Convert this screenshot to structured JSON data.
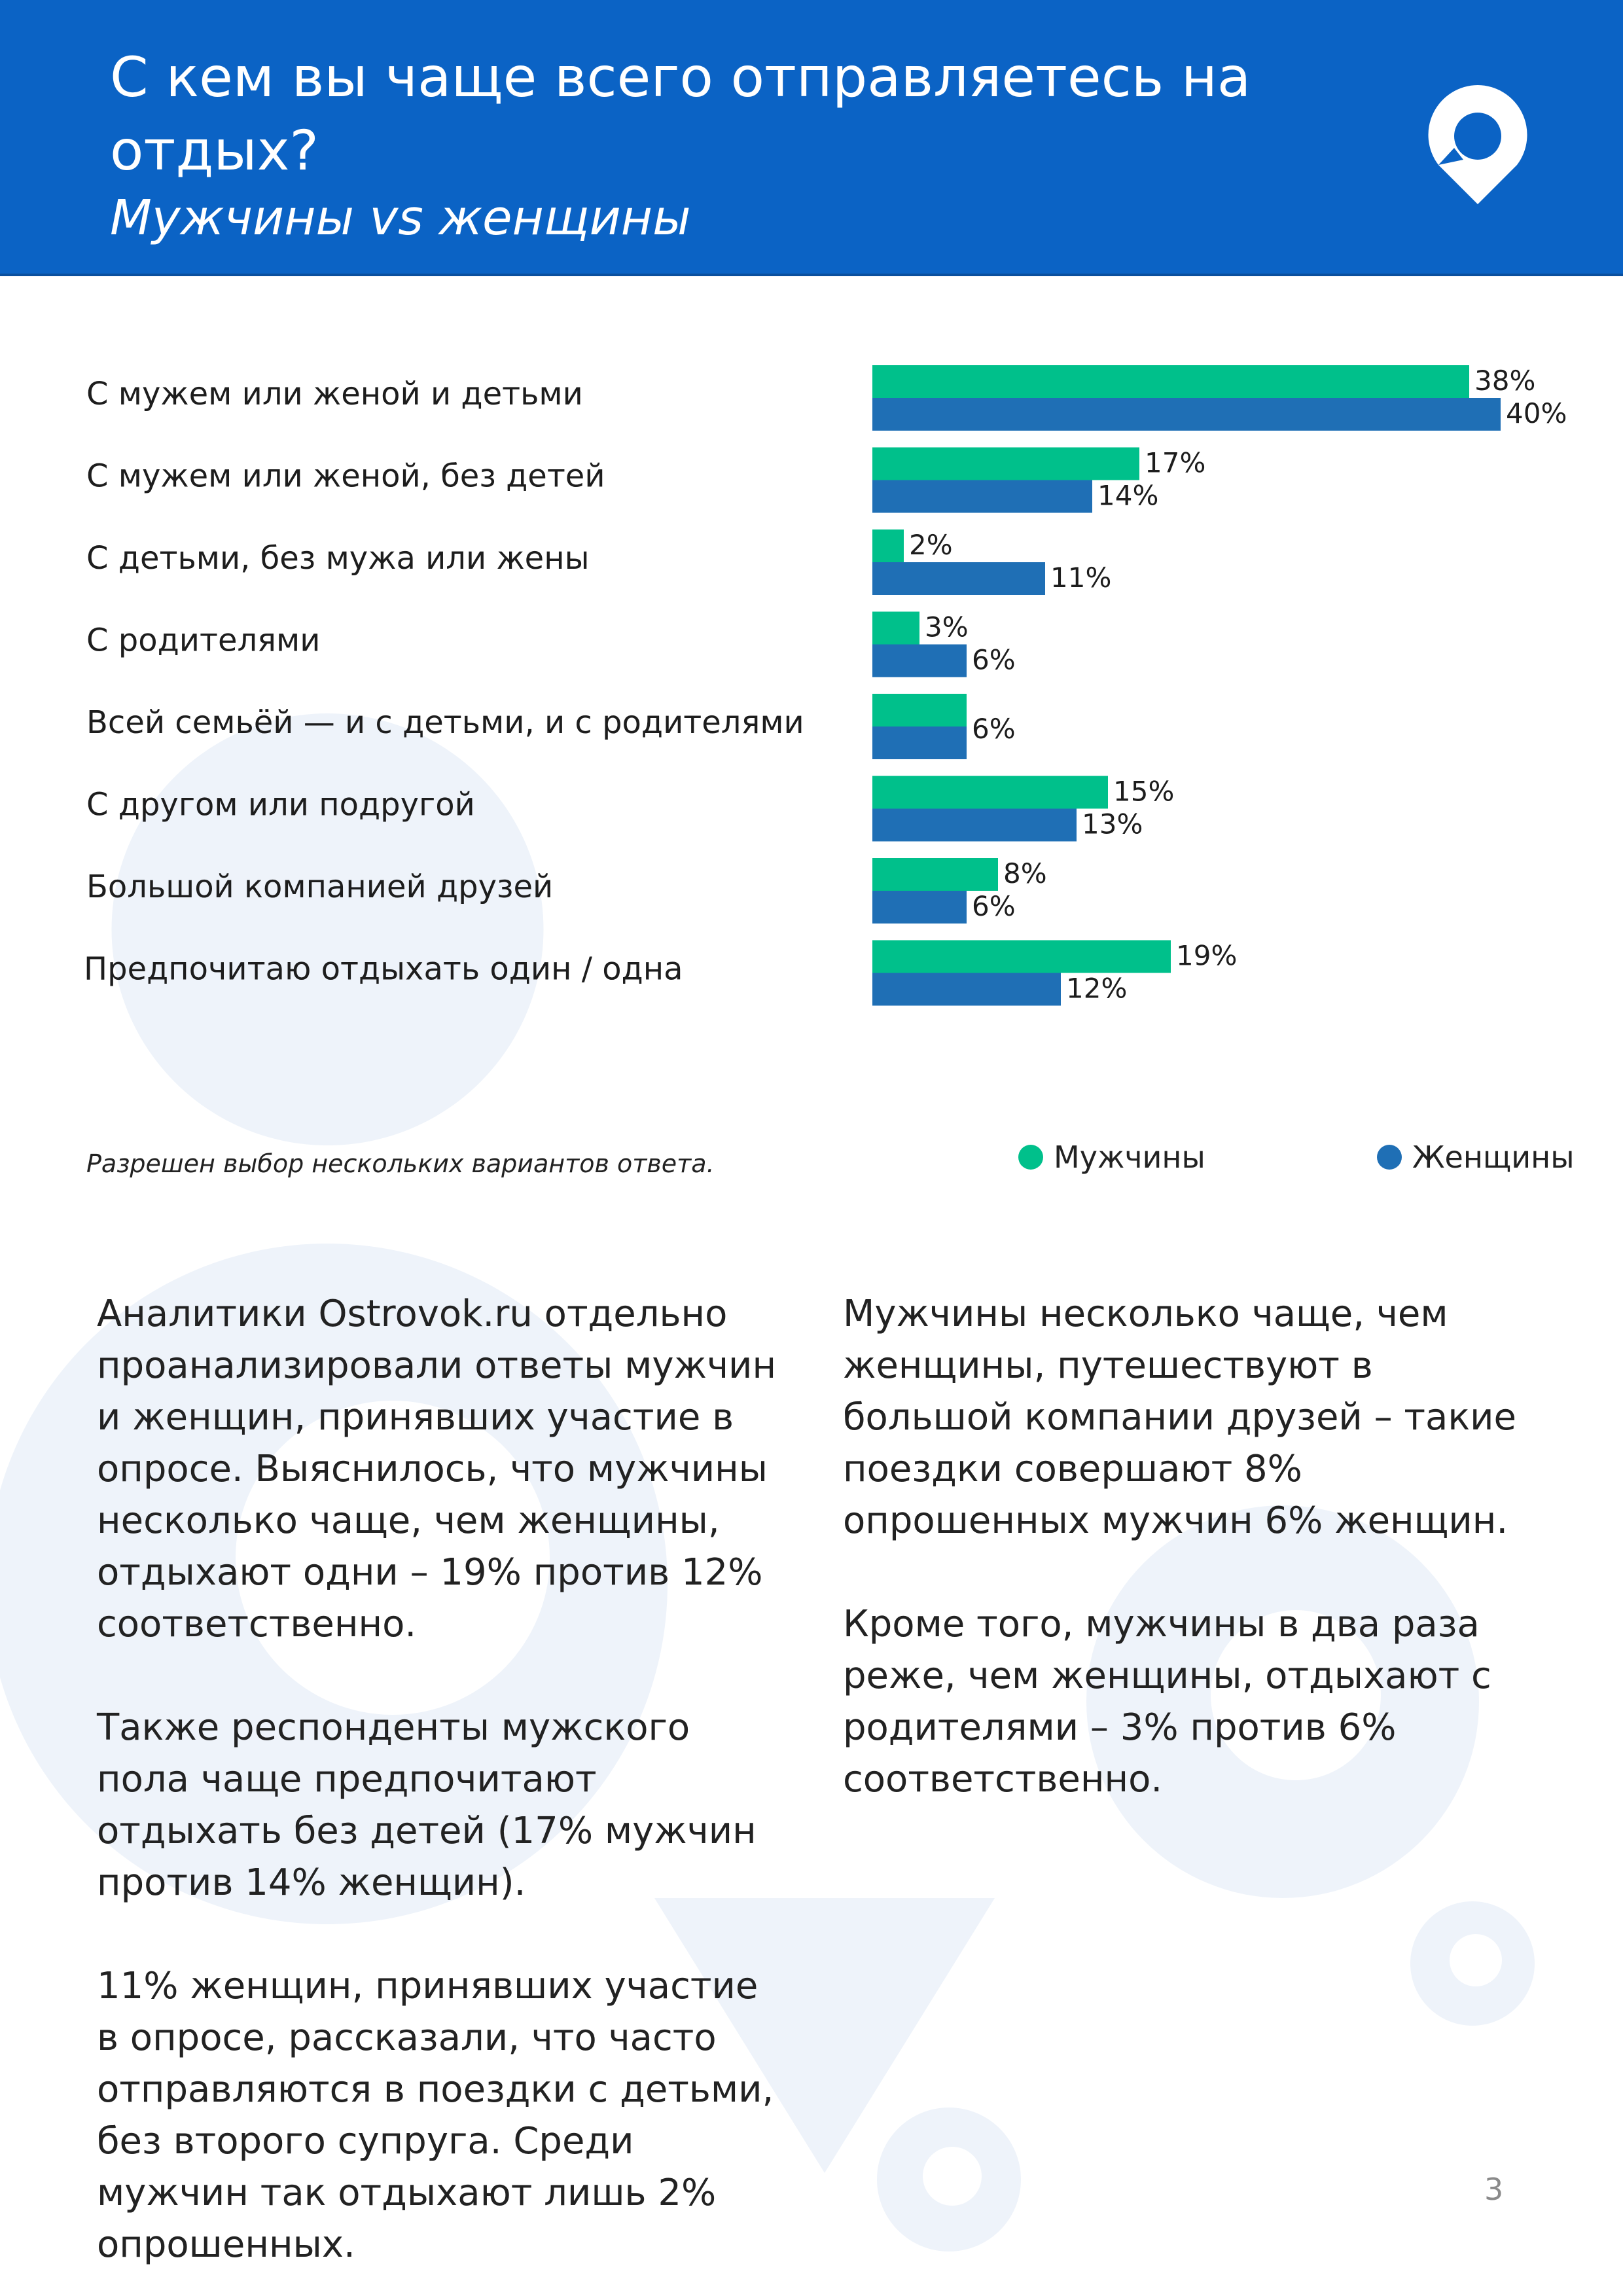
{
  "header": {
    "title": "С кем вы чаще всего отправляетесь на отдых?",
    "subtitle": "Мужчины vs женщины"
  },
  "colors": {
    "men": "#00c08b",
    "women": "#1f6fb5",
    "header_bg": "#0b63c5"
  },
  "chart_data": {
    "type": "bar",
    "orientation": "horizontal",
    "categories": [
      "С мужем или женой и детьми",
      "С мужем или женой, без детей",
      "С детьми, без мужа или жены",
      "С родителями",
      "Всей семьёй — и с детьми, и с родителями",
      "С другом или подругой",
      "Большой компанией друзей",
      "Предпочитаю отдыхать один / одна"
    ],
    "series": [
      {
        "name": "Мужчины",
        "values": [
          38,
          17,
          2,
          3,
          6,
          15,
          8,
          19
        ]
      },
      {
        "name": "Женщины",
        "values": [
          40,
          14,
          11,
          6,
          6,
          13,
          6,
          12
        ]
      }
    ],
    "value_suffix": "%",
    "xlim": [
      0,
      40
    ],
    "grid": false,
    "legend_position": "bottom-right"
  },
  "note": "Разрешен выбор нескольких вариантов ответа.",
  "legend": {
    "men": "Мужчины",
    "women": "Женщины"
  },
  "text": {
    "left": [
      "Аналитики Ostrovok.ru отдельно проанализировали ответы мужчин и женщин, принявших участие в опросе. Выяснилось, что мужчины несколько чаще, чем женщины, отдыхают одни – 19% против 12% соответственно.",
      "Также респонденты мужского пола чаще предпочитают отдыхать без детей (17% мужчин против 14% женщин).",
      "11% женщин, принявших участие в опросе, рассказали, что часто отправляются в поездки с детьми, без второго супруга. Среди мужчин так отдыхают лишь 2% опрошенных."
    ],
    "right": [
      "Мужчины несколько чаще, чем женщины, путешествуют в большой компании друзей – такие поездки совершают 8% опрошенных мужчин 6% женщин.",
      "Кроме того, мужчины в два раза реже, чем женщины, отдыхают с родителями – 3% против 6% соответственно."
    ]
  },
  "page_number": "3"
}
